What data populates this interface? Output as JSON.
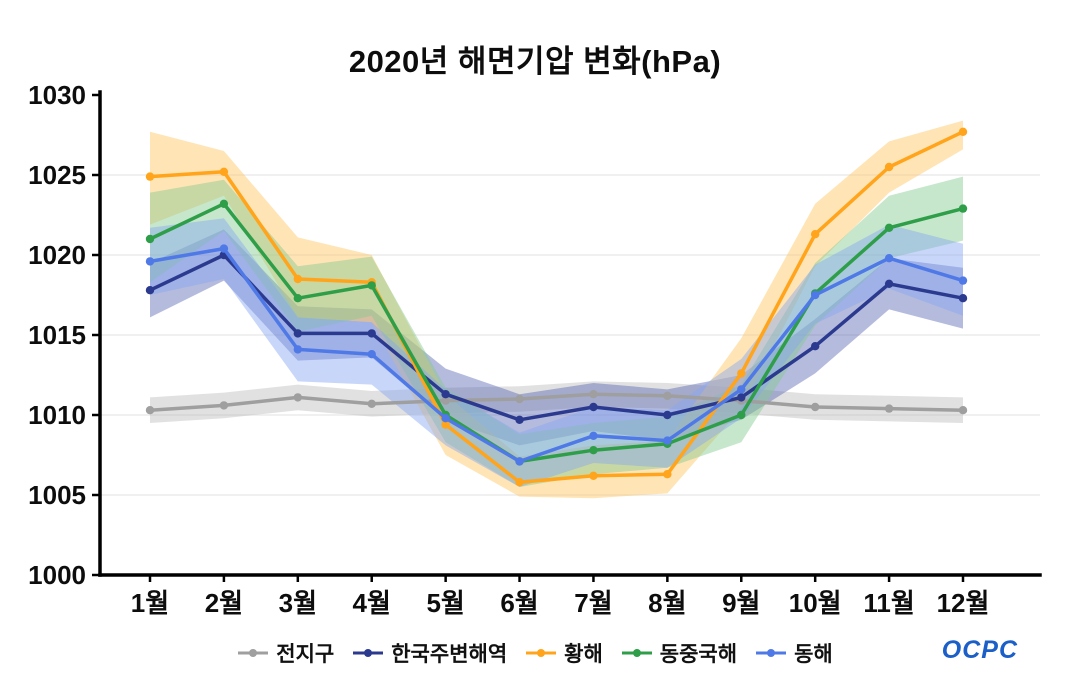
{
  "chart_data": {
    "type": "line",
    "title": "2020년 해면기압 변화(hPa)",
    "unit": "hPa",
    "categories": [
      "1월",
      "2월",
      "3월",
      "4월",
      "5월",
      "6월",
      "7월",
      "8월",
      "9월",
      "10월",
      "11월",
      "12월"
    ],
    "y_ticks": [
      1000,
      1005,
      1010,
      1015,
      1020,
      1025,
      1030
    ],
    "ylim": [
      1000,
      1030
    ],
    "grid": true,
    "legend_position": "bottom",
    "series": [
      {
        "name": "전지구",
        "color": "#9f9f9f",
        "band_color": "#bdbdbd",
        "values": [
          1010.3,
          1010.6,
          1011.1,
          1010.7,
          1010.9,
          1011.0,
          1011.3,
          1011.2,
          1010.9,
          1010.5,
          1010.4,
          1010.3
        ],
        "band_upper": [
          1011.1,
          1011.4,
          1011.9,
          1011.5,
          1011.7,
          1011.8,
          1012.1,
          1012.0,
          1011.7,
          1011.3,
          1011.2,
          1011.1
        ],
        "band_lower": [
          1009.5,
          1009.8,
          1010.3,
          1009.9,
          1010.1,
          1010.2,
          1010.5,
          1010.4,
          1010.1,
          1009.7,
          1009.6,
          1009.5
        ]
      },
      {
        "name": "한국주변해역",
        "color": "#2b3a8f",
        "band_color": "#5c68b4",
        "values": [
          1017.8,
          1020.0,
          1015.1,
          1015.1,
          1011.3,
          1009.7,
          1010.5,
          1010.0,
          1011.1,
          1014.3,
          1018.2,
          1017.3
        ],
        "band_upper": [
          1019.5,
          1021.6,
          1016.8,
          1016.6,
          1012.9,
          1011.3,
          1012.0,
          1011.6,
          1012.5,
          1016.0,
          1019.8,
          1019.2
        ],
        "band_lower": [
          1016.1,
          1018.4,
          1013.4,
          1013.6,
          1009.7,
          1008.1,
          1009.0,
          1008.4,
          1009.7,
          1012.6,
          1016.6,
          1015.4
        ]
      },
      {
        "name": "황해",
        "color": "#ffa41b",
        "band_color": "#ffc45e",
        "values": [
          1024.9,
          1025.2,
          1018.5,
          1018.3,
          1009.4,
          1005.8,
          1006.2,
          1006.3,
          1012.6,
          1021.3,
          1025.5,
          1027.7
        ],
        "band_upper": [
          1027.7,
          1026.5,
          1021.1,
          1020.0,
          1011.3,
          1007.4,
          1008.1,
          1008.4,
          1014.8,
          1023.2,
          1027.1,
          1028.4
        ],
        "band_lower": [
          1021.9,
          1023.7,
          1016.1,
          1015.8,
          1007.5,
          1004.9,
          1004.8,
          1005.1,
          1010.4,
          1019.3,
          1023.9,
          1026.6
        ]
      },
      {
        "name": "동중국해",
        "color": "#2f9e49",
        "band_color": "#83c98f",
        "values": [
          1021.0,
          1023.2,
          1017.3,
          1018.1,
          1010.0,
          1007.1,
          1007.8,
          1008.2,
          1010.0,
          1017.6,
          1021.7,
          1022.9
        ],
        "band_upper": [
          1023.9,
          1024.7,
          1019.3,
          1019.9,
          1011.7,
          1008.8,
          1009.5,
          1009.9,
          1011.9,
          1019.5,
          1023.7,
          1024.9
        ],
        "band_lower": [
          1018.3,
          1021.5,
          1015.2,
          1016.2,
          1008.3,
          1005.5,
          1006.3,
          1006.7,
          1008.3,
          1015.6,
          1019.8,
          1020.9
        ]
      },
      {
        "name": "동해",
        "color": "#4f79e6",
        "band_color": "#86a6f2",
        "values": [
          1019.6,
          1020.4,
          1014.1,
          1013.8,
          1009.8,
          1007.1,
          1008.7,
          1008.4,
          1011.6,
          1017.5,
          1019.8,
          1018.4
        ],
        "band_upper": [
          1021.7,
          1022.3,
          1016.1,
          1015.8,
          1011.6,
          1008.9,
          1010.5,
          1010.3,
          1013.5,
          1019.4,
          1021.9,
          1020.7
        ],
        "band_lower": [
          1017.5,
          1018.5,
          1012.1,
          1011.9,
          1008.1,
          1005.5,
          1007.0,
          1006.7,
          1009.8,
          1015.7,
          1017.9,
          1016.2
        ]
      }
    ]
  },
  "logo": {
    "text": "OCPC"
  }
}
